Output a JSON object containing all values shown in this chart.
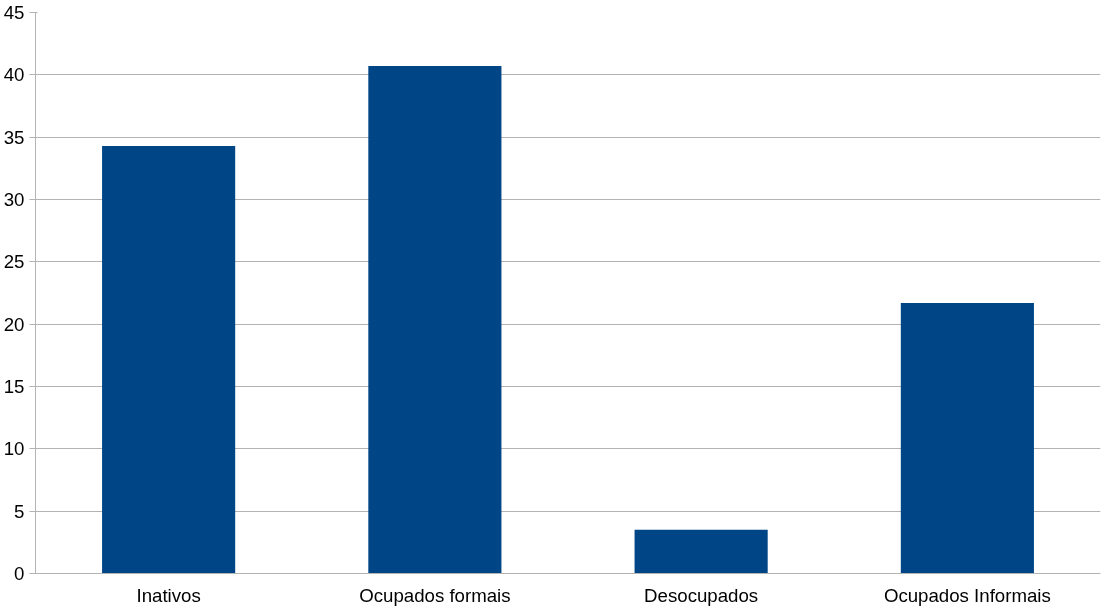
{
  "chart_data": {
    "type": "bar",
    "categories": [
      "Inativos",
      "Ocupados formais",
      "Desocupados",
      "Ocupados Informais"
    ],
    "values": [
      34.3,
      40.7,
      3.5,
      21.7
    ],
    "color": "#004586",
    "ylim": [
      0,
      45
    ],
    "yticks": [
      0,
      5,
      10,
      15,
      20,
      25,
      30,
      35,
      40,
      45
    ],
    "grid": "y"
  }
}
